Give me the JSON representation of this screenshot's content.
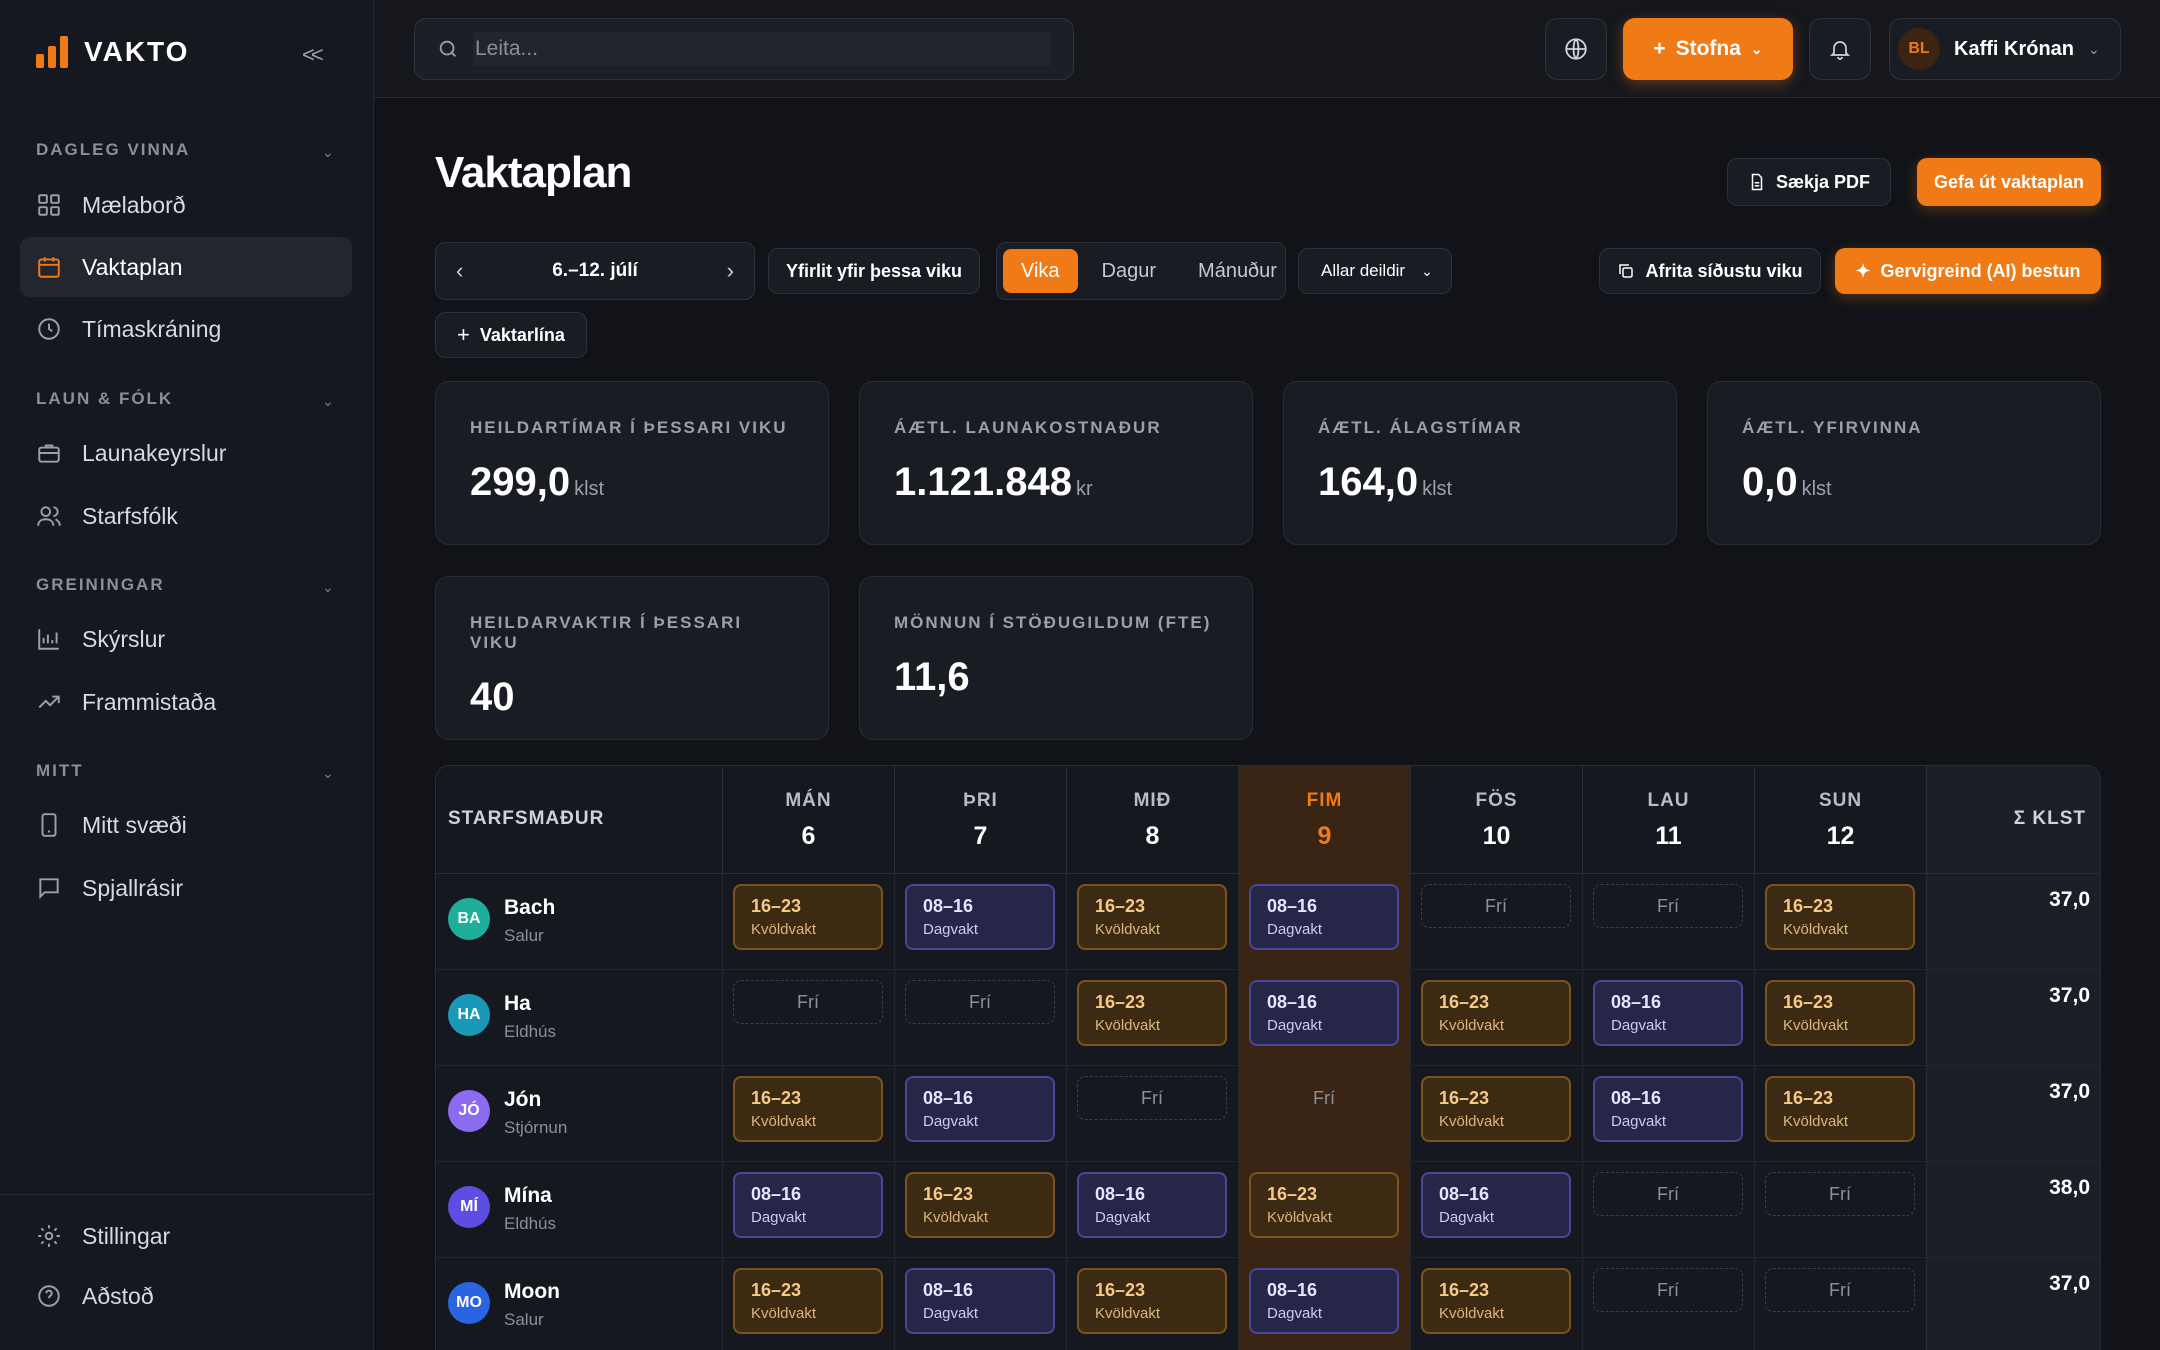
{
  "app": {
    "name": "VAKTO",
    "collapse": "<<"
  },
  "sidebar": {
    "sections": [
      {
        "label": "DAGLEG VINNA"
      },
      {
        "label": "LAUN & FÓLK"
      },
      {
        "label": "GREININGAR"
      },
      {
        "label": "MITT"
      }
    ],
    "items": [
      {
        "label": "Mælaborð",
        "icon": "dashboard-icon"
      },
      {
        "label": "Vaktaplan",
        "icon": "calendar-icon",
        "active": true
      },
      {
        "label": "Tímaskráning",
        "icon": "clock-icon"
      },
      {
        "label": "Launakeyrslur",
        "icon": "briefcase-icon"
      },
      {
        "label": "Starfsfólk",
        "icon": "users-icon"
      },
      {
        "label": "Skýrslur",
        "icon": "bar-chart-icon"
      },
      {
        "label": "Frammistaða",
        "icon": "trend-icon"
      },
      {
        "label": "Mitt svæði",
        "icon": "phone-icon"
      },
      {
        "label": "Spjallrásir",
        "icon": "chat-icon"
      }
    ],
    "footer": [
      {
        "label": "Stillingar",
        "icon": "gear-icon"
      },
      {
        "label": "Aðstoð",
        "icon": "help-icon"
      }
    ]
  },
  "topbar": {
    "search_placeholder": "Leita...",
    "create_label": "Stofna",
    "user": {
      "initials": "BL",
      "name": "Kaffi Krónan"
    }
  },
  "page": {
    "title": "Vaktaplan",
    "download_pdf": "Sækja PDF",
    "publish": "Gefa út vaktaplan",
    "week_label": "6.–12. júlí",
    "week_overview": "Yfirlit yfir þessa viku",
    "views": [
      "Vika",
      "Dagur",
      "Mánuður"
    ],
    "active_view": "Vika",
    "department_filter": "Allar deildir",
    "copy_last_week": "Afrita síðustu viku",
    "ai_optimize": "Gervigreind (AI) bestun",
    "add_shift_line": "Vaktarlína"
  },
  "stats": [
    {
      "label": "HEILDARTÍMAR Í ÞESSARI VIKU",
      "value": "299,0",
      "unit": "klst"
    },
    {
      "label": "ÁÆTL. LAUNAKOSTNAÐUR",
      "value": "1.121.848",
      "unit": "kr"
    },
    {
      "label": "ÁÆTL. ÁLAGSTÍMAR",
      "value": "164,0",
      "unit": "klst"
    },
    {
      "label": "ÁÆTL. YFIRVINNA",
      "value": "0,0",
      "unit": "klst"
    },
    {
      "label": "HEILDARVAKTIR Í ÞESSARI VIKU",
      "value": "40",
      "unit": ""
    },
    {
      "label": "MÖNNUN Í STÖÐUGILDUM (FTE)",
      "value": "11,6",
      "unit": ""
    }
  ],
  "schedule": {
    "employee_header": "STARFSMAÐUR",
    "total_header": "Σ KLST",
    "days": [
      {
        "name": "MÁN",
        "date": "6"
      },
      {
        "name": "ÞRI",
        "date": "7"
      },
      {
        "name": "MIÐ",
        "date": "8"
      },
      {
        "name": "FIM",
        "date": "9",
        "today": true
      },
      {
        "name": "FÖS",
        "date": "10"
      },
      {
        "name": "LAU",
        "date": "11"
      },
      {
        "name": "SUN",
        "date": "12"
      }
    ],
    "shift_types": {
      "eve": {
        "time": "16–23",
        "label": "Kvöldvakt"
      },
      "day": {
        "time": "08–16",
        "label": "Dagvakt"
      },
      "off": {
        "label": "Frí"
      }
    },
    "rows": [
      {
        "initials": "BA",
        "name": "Bach",
        "dept": "Salur",
        "color": "#1fae9a",
        "total": "37,0",
        "shifts": [
          "eve",
          "day",
          "eve",
          "day",
          "off",
          "off",
          "eve"
        ]
      },
      {
        "initials": "HA",
        "name": "Ha",
        "dept": "Eldhús",
        "color": "#1a98b8",
        "total": "37,0",
        "shifts": [
          "off",
          "off",
          "eve",
          "day",
          "eve",
          "day",
          "eve"
        ]
      },
      {
        "initials": "JÓ",
        "name": "Jón",
        "dept": "Stjórnun",
        "color": "#8b6cf0",
        "total": "37,0",
        "shifts": [
          "eve",
          "day",
          "off",
          "off",
          "eve",
          "day",
          "eve"
        ]
      },
      {
        "initials": "MÍ",
        "name": "Mína",
        "dept": "Eldhús",
        "color": "#5b4ee0",
        "total": "38,0",
        "shifts": [
          "day",
          "eve",
          "day",
          "eve",
          "day",
          "off",
          "off"
        ]
      },
      {
        "initials": "MO",
        "name": "Moon",
        "dept": "Salur",
        "color": "#2a64e0",
        "total": "37,0",
        "shifts": [
          "eve",
          "day",
          "eve",
          "day",
          "eve",
          "off",
          "off"
        ]
      }
    ]
  },
  "colors": {
    "accent": "#f07a16",
    "background": "#111318"
  }
}
